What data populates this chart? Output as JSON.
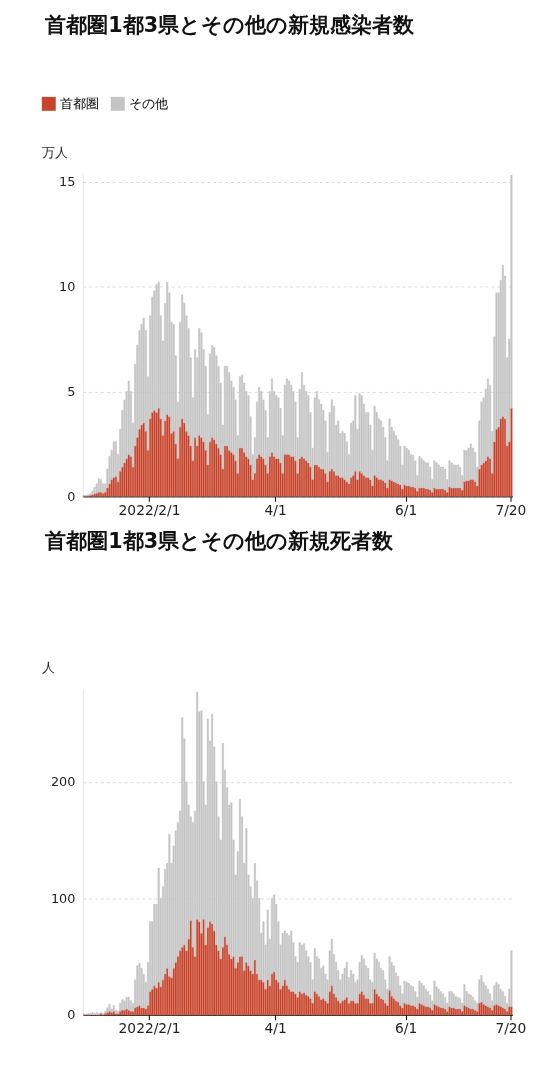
{
  "chart_data": [
    {
      "type": "bar",
      "title": "首都圏1都3県とその他の新規感染者数",
      "ylabel": "万人",
      "stacked": true,
      "grid": "y",
      "legend": "top left",
      "x": [
        "2022-01-01",
        "2022-01-02",
        "2022-01-03",
        "2022-01-04",
        "2022-01-05",
        "2022-01-06",
        "2022-01-07",
        "2022-01-08",
        "2022-01-09",
        "2022-01-10",
        "2022-01-11",
        "2022-01-12",
        "2022-01-13",
        "2022-01-14",
        "2022-01-15",
        "2022-01-16",
        "2022-01-17",
        "2022-01-18",
        "2022-01-19",
        "2022-01-20",
        "2022-01-21",
        "2022-01-22",
        "2022-01-23",
        "2022-01-24",
        "2022-01-25",
        "2022-01-26",
        "2022-01-27",
        "2022-01-28",
        "2022-01-29",
        "2022-01-30",
        "2022-01-31",
        "2022-02-01",
        "2022-02-02",
        "2022-02-03",
        "2022-02-04",
        "2022-02-05",
        "2022-02-06",
        "2022-02-07",
        "2022-02-08",
        "2022-02-09",
        "2022-02-10",
        "2022-02-11",
        "2022-02-12",
        "2022-02-13",
        "2022-02-14",
        "2022-02-15",
        "2022-02-16",
        "2022-02-17",
        "2022-02-18",
        "2022-02-19",
        "2022-02-20",
        "2022-02-21",
        "2022-02-22",
        "2022-02-23",
        "2022-02-24",
        "2022-02-25",
        "2022-02-26",
        "2022-02-27",
        "2022-02-28",
        "2022-03-01",
        "2022-03-02",
        "2022-03-03",
        "2022-03-04",
        "2022-03-05",
        "2022-03-06",
        "2022-03-07",
        "2022-03-08",
        "2022-03-09",
        "2022-03-10",
        "2022-03-11",
        "2022-03-12",
        "2022-03-13",
        "2022-03-14",
        "2022-03-15",
        "2022-03-16",
        "2022-03-17",
        "2022-03-18",
        "2022-03-19",
        "2022-03-20",
        "2022-03-21",
        "2022-03-22",
        "2022-03-23",
        "2022-03-24",
        "2022-03-25",
        "2022-03-26",
        "2022-03-27",
        "2022-03-28",
        "2022-03-29",
        "2022-03-30",
        "2022-03-31",
        "2022-04-01",
        "2022-04-02",
        "2022-04-03",
        "2022-04-04",
        "2022-04-05",
        "2022-04-06",
        "2022-04-07",
        "2022-04-08",
        "2022-04-09",
        "2022-04-10",
        "2022-04-11",
        "2022-04-12",
        "2022-04-13",
        "2022-04-14",
        "2022-04-15",
        "2022-04-16",
        "2022-04-17",
        "2022-04-18",
        "2022-04-19",
        "2022-04-20",
        "2022-04-21",
        "2022-04-22",
        "2022-04-23",
        "2022-04-24",
        "2022-04-25",
        "2022-04-26",
        "2022-04-27",
        "2022-04-28",
        "2022-04-29",
        "2022-04-30",
        "2022-05-01",
        "2022-05-02",
        "2022-05-03",
        "2022-05-04",
        "2022-05-05",
        "2022-05-06",
        "2022-05-07",
        "2022-05-08",
        "2022-05-09",
        "2022-05-10",
        "2022-05-11",
        "2022-05-12",
        "2022-05-13",
        "2022-05-14",
        "2022-05-15",
        "2022-05-16",
        "2022-05-17",
        "2022-05-18",
        "2022-05-19",
        "2022-05-20",
        "2022-05-21",
        "2022-05-22",
        "2022-05-23",
        "2022-05-24",
        "2022-05-25",
        "2022-05-26",
        "2022-05-27",
        "2022-05-28",
        "2022-05-29",
        "2022-05-30",
        "2022-05-31",
        "2022-06-01",
        "2022-06-02",
        "2022-06-03",
        "2022-06-04",
        "2022-06-05",
        "2022-06-06",
        "2022-06-07",
        "2022-06-08",
        "2022-06-09",
        "2022-06-10",
        "2022-06-11",
        "2022-06-12",
        "2022-06-13",
        "2022-06-14",
        "2022-06-15",
        "2022-06-16",
        "2022-06-17",
        "2022-06-18",
        "2022-06-19",
        "2022-06-20",
        "2022-06-21",
        "2022-06-22",
        "2022-06-23",
        "2022-06-24",
        "2022-06-25",
        "2022-06-26",
        "2022-06-27",
        "2022-06-28",
        "2022-06-29",
        "2022-06-30",
        "2022-07-01",
        "2022-07-02",
        "2022-07-03",
        "2022-07-04",
        "2022-07-05",
        "2022-07-06",
        "2022-07-07",
        "2022-07-08",
        "2022-07-09",
        "2022-07-10",
        "2022-07-11",
        "2022-07-12",
        "2022-07-13",
        "2022-07-14",
        "2022-07-15",
        "2022-07-16",
        "2022-07-17",
        "2022-07-18",
        "2022-07-19",
        "2022-07-20"
      ],
      "series": [
        {
          "name": "首都圏",
          "color": "#c8432b",
          "values": [
            0.02,
            0.02,
            0.03,
            0.05,
            0.08,
            0.12,
            0.15,
            0.2,
            0.2,
            0.15,
            0.2,
            0.4,
            0.6,
            0.8,
            0.9,
            0.95,
            0.7,
            1.2,
            1.4,
            1.6,
            1.8,
            2.0,
            1.9,
            1.4,
            2.4,
            2.8,
            3.2,
            3.4,
            3.5,
            3.1,
            2.2,
            3.7,
            4.0,
            4.1,
            4.0,
            4.2,
            3.7,
            2.9,
            3.6,
            3.9,
            3.8,
            3.0,
            3.1,
            2.5,
            1.8,
            3.3,
            3.7,
            3.5,
            3.1,
            2.9,
            2.4,
            1.7,
            2.8,
            2.4,
            2.9,
            2.8,
            2.6,
            2.2,
            1.5,
            2.6,
            2.8,
            2.7,
            2.5,
            2.3,
            2.0,
            1.3,
            2.4,
            2.4,
            2.2,
            2.1,
            2.0,
            1.7,
            1.1,
            2.3,
            2.3,
            2.1,
            1.9,
            1.8,
            1.5,
            0.8,
            1.1,
            1.8,
            2.0,
            1.9,
            1.8,
            1.5,
            1.1,
            1.9,
            2.1,
            1.9,
            1.8,
            1.8,
            1.6,
            1.1,
            2.0,
            2.0,
            2.0,
            1.9,
            1.9,
            1.7,
            1.1,
            1.8,
            1.9,
            1.8,
            1.7,
            1.6,
            1.4,
            0.8,
            1.5,
            1.5,
            1.4,
            1.3,
            1.3,
            1.1,
            0.7,
            1.2,
            1.3,
            1.2,
            1.0,
            1.0,
            0.9,
            0.9,
            0.8,
            0.7,
            0.6,
            0.9,
            1.0,
            1.2,
            0.8,
            1.2,
            1.1,
            1.0,
            0.9,
            0.9,
            0.8,
            0.5,
            1.0,
            0.9,
            0.8,
            0.8,
            0.75,
            0.65,
            0.4,
            0.8,
            0.75,
            0.7,
            0.65,
            0.6,
            0.55,
            0.35,
            0.55,
            0.5,
            0.5,
            0.45,
            0.45,
            0.4,
            0.25,
            0.4,
            0.4,
            0.4,
            0.35,
            0.35,
            0.3,
            0.2,
            0.4,
            0.35,
            0.35,
            0.35,
            0.35,
            0.3,
            0.2,
            0.45,
            0.4,
            0.4,
            0.4,
            0.4,
            0.4,
            0.3,
            0.7,
            0.75,
            0.75,
            0.8,
            0.8,
            0.7,
            0.5,
            1.3,
            1.5,
            1.6,
            1.7,
            1.9,
            1.8,
            1.1,
            2.6,
            3.2,
            3.3,
            3.7,
            3.8,
            3.7,
            2.4,
            2.6,
            4.2
          ]
        },
        {
          "name": "その他",
          "color": "#c4c4c4",
          "values": [
            0.03,
            0.03,
            0.05,
            0.07,
            0.18,
            0.31,
            0.45,
            0.65,
            0.6,
            0.45,
            0.4,
            0.9,
            1.3,
            1.4,
            1.7,
            1.65,
            1.3,
            2.0,
            2.7,
            3.0,
            3.2,
            3.5,
            3.1,
            2.1,
            3.9,
            4.4,
            4.7,
            4.8,
            5.0,
            4.8,
            3.5,
            4.9,
            5.5,
            5.7,
            6.1,
            6.0,
            4.9,
            4.5,
            5.6,
            6.3,
            5.9,
            5.3,
            5.1,
            4.2,
            2.7,
            5.0,
            5.9,
            5.7,
            5.5,
            5.1,
            4.2,
            3.0,
            4.2,
            4.2,
            5.1,
            5.0,
            4.4,
            4.0,
            2.4,
            4.2,
            4.4,
            4.4,
            4.2,
            3.9,
            3.4,
            2.1,
            3.8,
            3.8,
            3.7,
            3.4,
            3.2,
            2.9,
            1.8,
            3.4,
            3.5,
            3.3,
            3.1,
            3.0,
            2.3,
            1.2,
            1.7,
            2.7,
            3.2,
            3.1,
            2.8,
            2.6,
            1.7,
            3.1,
            3.5,
            3.1,
            3.0,
            2.9,
            2.6,
            1.8,
            3.3,
            3.6,
            3.5,
            3.4,
            3.1,
            2.8,
            1.7,
            3.3,
            4.0,
            3.5,
            3.3,
            3.2,
            2.6,
            1.5,
            3.2,
            3.5,
            3.2,
            3.1,
            2.8,
            2.5,
            1.4,
            2.8,
            3.3,
            3.1,
            2.4,
            2.6,
            2.1,
            2.2,
            2.2,
            1.9,
            1.4,
            2.6,
            2.6,
            3.6,
            2.4,
            3.7,
            3.7,
            3.4,
            3.1,
            3.1,
            2.6,
            1.7,
            3.3,
            3.1,
            2.9,
            2.8,
            2.55,
            2.15,
            1.3,
            2.9,
            2.55,
            2.4,
            2.25,
            2.1,
            1.85,
            1.15,
            1.85,
            1.8,
            1.7,
            1.55,
            1.5,
            1.3,
            0.75,
            1.5,
            1.4,
            1.3,
            1.25,
            1.25,
            1.1,
            0.6,
            1.3,
            1.25,
            1.15,
            1.05,
            1.05,
            1.0,
            0.6,
            1.25,
            1.2,
            1.1,
            1.1,
            1.1,
            1.0,
            0.7,
            1.5,
            1.45,
            1.55,
            1.7,
            1.5,
            1.4,
            0.9,
            2.3,
            3.0,
            3.1,
            3.4,
            3.7,
            3.5,
            2.0,
            5.0,
            6.5,
            6.4,
            6.6,
            7.2,
            6.8,
            4.2,
            4.9,
            11.1
          ]
        }
      ],
      "xlim": [
        "2022-01-01",
        "2022-07-21"
      ],
      "xticks": [
        {
          "value": "2022-02-01",
          "label": "2022/2/1"
        },
        {
          "value": "2022-04-01",
          "label": "4/1"
        },
        {
          "value": "2022-06-01",
          "label": "6/1"
        },
        {
          "value": "2022-07-20",
          "label": "7/20"
        }
      ],
      "ylim": [
        0,
        15.4
      ],
      "yticks": [
        0,
        5,
        10,
        15
      ]
    },
    {
      "type": "bar",
      "title": "首都圏1都3県とその他の新規死者数",
      "ylabel": "人",
      "stacked": true,
      "grid": "y",
      "legend": "top left",
      "x": [
        "2022-01-01",
        "2022-01-02",
        "2022-01-03",
        "2022-01-04",
        "2022-01-05",
        "2022-01-06",
        "2022-01-07",
        "2022-01-08",
        "2022-01-09",
        "2022-01-10",
        "2022-01-11",
        "2022-01-12",
        "2022-01-13",
        "2022-01-14",
        "2022-01-15",
        "2022-01-16",
        "2022-01-17",
        "2022-01-18",
        "2022-01-19",
        "2022-01-20",
        "2022-01-21",
        "2022-01-22",
        "2022-01-23",
        "2022-01-24",
        "2022-01-25",
        "2022-01-26",
        "2022-01-27",
        "2022-01-28",
        "2022-01-29",
        "2022-01-30",
        "2022-01-31",
        "2022-02-01",
        "2022-02-02",
        "2022-02-03",
        "2022-02-04",
        "2022-02-05",
        "2022-02-06",
        "2022-02-07",
        "2022-02-08",
        "2022-02-09",
        "2022-02-10",
        "2022-02-11",
        "2022-02-12",
        "2022-02-13",
        "2022-02-14",
        "2022-02-15",
        "2022-02-16",
        "2022-02-17",
        "2022-02-18",
        "2022-02-19",
        "2022-02-20",
        "2022-02-21",
        "2022-02-22",
        "2022-02-23",
        "2022-02-24",
        "2022-02-25",
        "2022-02-26",
        "2022-02-27",
        "2022-02-28",
        "2022-03-01",
        "2022-03-02",
        "2022-03-03",
        "2022-03-04",
        "2022-03-05",
        "2022-03-06",
        "2022-03-07",
        "2022-03-08",
        "2022-03-09",
        "2022-03-10",
        "2022-03-11",
        "2022-03-12",
        "2022-03-13",
        "2022-03-14",
        "2022-03-15",
        "2022-03-16",
        "2022-03-17",
        "2022-03-18",
        "2022-03-19",
        "2022-03-20",
        "2022-03-21",
        "2022-03-22",
        "2022-03-23",
        "2022-03-24",
        "2022-03-25",
        "2022-03-26",
        "2022-03-27",
        "2022-03-28",
        "2022-03-29",
        "2022-03-30",
        "2022-03-31",
        "2022-04-01",
        "2022-04-02",
        "2022-04-03",
        "2022-04-04",
        "2022-04-05",
        "2022-04-06",
        "2022-04-07",
        "2022-04-08",
        "2022-04-09",
        "2022-04-10",
        "2022-04-11",
        "2022-04-12",
        "2022-04-13",
        "2022-04-14",
        "2022-04-15",
        "2022-04-16",
        "2022-04-17",
        "2022-04-18",
        "2022-04-19",
        "2022-04-20",
        "2022-04-21",
        "2022-04-22",
        "2022-04-23",
        "2022-04-24",
        "2022-04-25",
        "2022-04-26",
        "2022-04-27",
        "2022-04-28",
        "2022-04-29",
        "2022-04-30",
        "2022-05-01",
        "2022-05-02",
        "2022-05-03",
        "2022-05-04",
        "2022-05-05",
        "2022-05-06",
        "2022-05-07",
        "2022-05-08",
        "2022-05-09",
        "2022-05-10",
        "2022-05-11",
        "2022-05-12",
        "2022-05-13",
        "2022-05-14",
        "2022-05-15",
        "2022-05-16",
        "2022-05-17",
        "2022-05-18",
        "2022-05-19",
        "2022-05-20",
        "2022-05-21",
        "2022-05-22",
        "2022-05-23",
        "2022-05-24",
        "2022-05-25",
        "2022-05-26",
        "2022-05-27",
        "2022-05-28",
        "2022-05-29",
        "2022-05-30",
        "2022-05-31",
        "2022-06-01",
        "2022-06-02",
        "2022-06-03",
        "2022-06-04",
        "2022-06-05",
        "2022-06-06",
        "2022-06-07",
        "2022-06-08",
        "2022-06-09",
        "2022-06-10",
        "2022-06-11",
        "2022-06-12",
        "2022-06-13",
        "2022-06-14",
        "2022-06-15",
        "2022-06-16",
        "2022-06-17",
        "2022-06-18",
        "2022-06-19",
        "2022-06-20",
        "2022-06-21",
        "2022-06-22",
        "2022-06-23",
        "2022-06-24",
        "2022-06-25",
        "2022-06-26",
        "2022-06-27",
        "2022-06-28",
        "2022-06-29",
        "2022-06-30",
        "2022-07-01",
        "2022-07-02",
        "2022-07-03",
        "2022-07-04",
        "2022-07-05",
        "2022-07-06",
        "2022-07-07",
        "2022-07-08",
        "2022-07-09",
        "2022-07-10",
        "2022-07-11",
        "2022-07-12",
        "2022-07-13",
        "2022-07-14",
        "2022-07-15",
        "2022-07-16",
        "2022-07-17",
        "2022-07-18",
        "2022-07-19",
        "2022-07-20"
      ],
      "series": [
        {
          "name": "首都圏",
          "color": "#c8432b",
          "values": [
            0,
            0,
            0,
            0,
            null,
            0,
            null,
            0,
            1,
            0,
            1,
            2,
            3,
            2,
            3,
            1,
            1,
            3,
            4,
            4,
            5,
            4,
            3,
            3,
            6,
            7,
            8,
            6,
            6,
            5,
            8,
            20,
            22,
            25,
            23,
            28,
            24,
            30,
            35,
            40,
            33,
            32,
            40,
            45,
            50,
            55,
            58,
            60,
            55,
            65,
            81,
            58,
            50,
            82,
            80,
            70,
            82,
            60,
            75,
            80,
            78,
            72,
            60,
            55,
            48,
            58,
            67,
            60,
            52,
            48,
            50,
            40,
            45,
            50,
            50,
            38,
            45,
            42,
            38,
            35,
            47,
            35,
            30,
            30,
            28,
            22,
            30,
            25,
            35,
            37,
            30,
            28,
            22,
            25,
            30,
            25,
            22,
            20,
            20,
            18,
            15,
            20,
            18,
            19,
            17,
            16,
            14,
            10,
            20,
            18,
            16,
            13,
            14,
            12,
            10,
            20,
            25,
            18,
            15,
            12,
            10,
            12,
            13,
            15,
            10,
            12,
            12,
            10,
            10,
            18,
            20,
            17,
            14,
            14,
            10,
            10,
            22,
            18,
            16,
            14,
            13,
            10,
            8,
            21,
            16,
            14,
            12,
            11,
            8,
            6,
            10,
            9,
            9,
            8,
            8,
            7,
            5,
            10,
            9,
            8,
            7,
            7,
            6,
            4,
            9,
            8,
            7,
            6,
            6,
            5,
            3,
            7,
            6,
            6,
            5,
            5,
            5,
            3,
            8,
            7,
            6,
            5,
            5,
            4,
            3,
            10,
            11,
            9,
            8,
            7,
            6,
            4,
            8,
            9,
            8,
            7,
            6,
            5,
            3,
            7,
            7
          ]
        },
        {
          "name": "その他",
          "color": "#c4c4c4",
          "values": [
            1,
            0,
            1,
            1,
            2,
            1,
            2,
            1,
            1,
            1,
            2,
            4,
            6,
            3,
            5,
            3,
            2,
            7,
            9,
            8,
            10,
            11,
            9,
            7,
            24,
            35,
            36,
            34,
            29,
            23,
            37,
            60,
            58,
            70,
            72,
            98,
            76,
            80,
            90,
            90,
            122,
            98,
            105,
            113,
            115,
            120,
            197,
            177,
            145,
            115,
            89,
            107,
            125,
            195,
            180,
            191,
            118,
            120,
            179,
            155,
            180,
            158,
            140,
            115,
            102,
            175,
            143,
            135,
            128,
            134,
            100,
            80,
            95,
            135,
            120,
            92,
            115,
            78,
            72,
            65,
            83,
            80,
            70,
            40,
            52,
            38,
            60,
            40,
            65,
            66,
            65,
            52,
            38,
            45,
            42,
            45,
            46,
            52,
            42,
            32,
            30,
            42,
            42,
            42,
            38,
            34,
            31,
            20,
            37,
            32,
            32,
            27,
            28,
            23,
            20,
            35,
            40,
            34,
            30,
            26,
            20,
            23,
            27,
            30,
            22,
            26,
            23,
            18,
            20,
            27,
            31,
            31,
            28,
            26,
            20,
            18,
            31,
            30,
            29,
            26,
            25,
            20,
            14,
            29,
            29,
            28,
            24,
            22,
            17,
            12,
            19,
            19,
            18,
            17,
            16,
            13,
            10,
            19,
            18,
            17,
            15,
            13,
            11,
            8,
            20,
            16,
            15,
            14,
            12,
            10,
            7,
            13,
            14,
            12,
            11,
            10,
            9,
            7,
            18,
            13,
            12,
            12,
            10,
            8,
            7,
            20,
            23,
            19,
            17,
            15,
            12,
            8,
            17,
            19,
            18,
            15,
            14,
            11,
            7,
            15,
            48
          ]
        }
      ],
      "xlim": [
        "2022-01-01",
        "2022-07-21"
      ],
      "xticks": [
        {
          "value": "2022-02-01",
          "label": "2022/2/1"
        },
        {
          "value": "2022-04-01",
          "label": "4/1"
        },
        {
          "value": "2022-06-01",
          "label": "6/1"
        },
        {
          "value": "2022-07-20",
          "label": "7/20"
        }
      ],
      "ylim": [
        0,
        280
      ],
      "yticks": [
        0,
        100,
        200
      ]
    }
  ]
}
